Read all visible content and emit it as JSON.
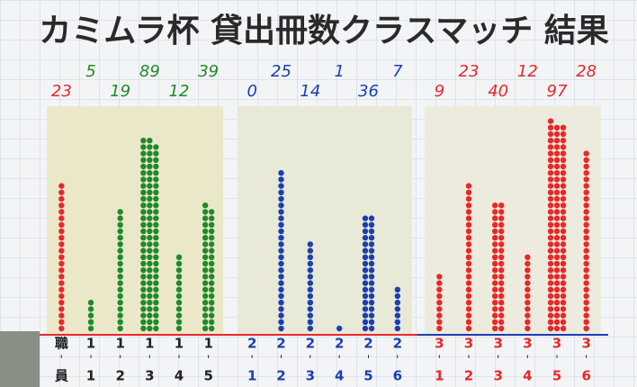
{
  "title": "カミムラ杯 貸出冊数クラスマッチ 結果",
  "panels": [
    {
      "columns": [
        {
          "count": 23,
          "grade": "職",
          "class": "員",
          "color": "#e8282a"
        },
        {
          "count": 5,
          "grade": "1",
          "class": "1",
          "color": "#1f8a2a"
        },
        {
          "count": 19,
          "grade": "1",
          "class": "2",
          "color": "#1f8a2a"
        },
        {
          "count": 89,
          "grade": "1",
          "class": "3",
          "color": "#1f8a2a"
        },
        {
          "count": 12,
          "grade": "1",
          "class": "4",
          "color": "#1f8a2a"
        },
        {
          "count": 39,
          "grade": "1",
          "class": "5",
          "color": "#1f8a2a"
        }
      ]
    },
    {
      "columns": [
        {
          "count": 0,
          "grade": "2",
          "class": "1",
          "color": "#1a3fb0"
        },
        {
          "count": 25,
          "grade": "2",
          "class": "2",
          "color": "#1a3fb0"
        },
        {
          "count": 14,
          "grade": "2",
          "class": "3",
          "color": "#1a3fb0"
        },
        {
          "count": 1,
          "grade": "2",
          "class": "4",
          "color": "#1a3fb0"
        },
        {
          "count": 36,
          "grade": "2",
          "class": "5",
          "color": "#1a3fb0"
        },
        {
          "count": 7,
          "grade": "2",
          "class": "6",
          "color": "#1a3fb0"
        }
      ]
    },
    {
      "columns": [
        {
          "count": 9,
          "grade": "3",
          "class": "1",
          "color": "#e8282a"
        },
        {
          "count": 23,
          "grade": "3",
          "class": "2",
          "color": "#e8282a"
        },
        {
          "count": 40,
          "grade": "3",
          "class": "3",
          "color": "#e8282a"
        },
        {
          "count": 12,
          "grade": "3",
          "class": "4",
          "color": "#e8282a"
        },
        {
          "count": 97,
          "grade": "3",
          "class": "5",
          "color": "#e8282a"
        },
        {
          "count": 28,
          "grade": "3",
          "class": "6",
          "color": "#e8282a"
        }
      ]
    }
  ]
}
